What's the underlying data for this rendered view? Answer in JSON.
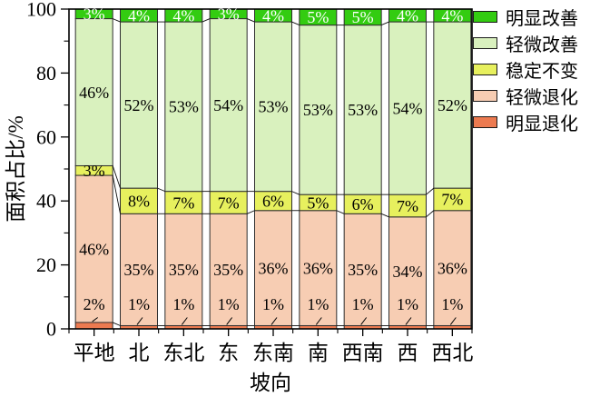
{
  "chart_data": {
    "type": "bar",
    "stacked": true,
    "percent_stacked": true,
    "title": "",
    "xlabel": "坡向",
    "ylabel": "面积占比/%",
    "ylim": [
      0,
      100
    ],
    "yticks": [
      0,
      20,
      40,
      60,
      80,
      100
    ],
    "grid": false,
    "legend_position": "top-right",
    "categories": [
      "平地",
      "北",
      "东北",
      "东",
      "东南",
      "南",
      "西南",
      "西",
      "西北"
    ],
    "series": [
      {
        "name": "明显退化",
        "color": "#EC7A50",
        "values": [
          2,
          1,
          1,
          1,
          1,
          1,
          1,
          1,
          1
        ]
      },
      {
        "name": "轻微退化",
        "color": "#F7CDB3",
        "values": [
          46,
          35,
          35,
          35,
          36,
          36,
          35,
          34,
          36
        ]
      },
      {
        "name": "稳定不变",
        "color": "#E7F05E",
        "values": [
          3,
          8,
          7,
          7,
          6,
          5,
          6,
          7,
          7
        ]
      },
      {
        "name": "轻微改善",
        "color": "#D9F1BE",
        "values": [
          46,
          52,
          53,
          54,
          53,
          53,
          53,
          54,
          52
        ]
      },
      {
        "name": "明显改善",
        "color": "#33CC11",
        "values": [
          3,
          4,
          4,
          3,
          4,
          5,
          5,
          4,
          4
        ]
      }
    ],
    "legend_order": [
      "明显改善",
      "轻微改善",
      "稳定不变",
      "轻微退化",
      "明显退化"
    ],
    "label_suffix": "%",
    "axis_color": "#000000",
    "bar_border_color": "#2e2e2e",
    "top_label_text_color": "#ffffff"
  }
}
